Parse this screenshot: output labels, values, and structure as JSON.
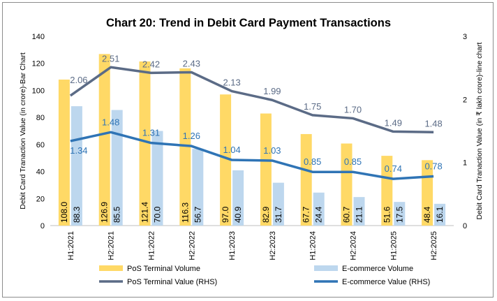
{
  "chart_data": {
    "type": "bar",
    "title": "Chart 20: Trend in Debit Card Payment Transactions",
    "ylabel": "Debit Card Tranaction Value (in crore)-Bar Chart",
    "y2label": "Debit Card Tranaction Value (in ₹ lakh crore)-line chart",
    "ylim": [
      0,
      140
    ],
    "y2lim": [
      0,
      3
    ],
    "yticks": [
      0,
      20,
      40,
      60,
      80,
      100,
      120,
      140
    ],
    "y2ticks": [
      0,
      1,
      2,
      3
    ],
    "categories": [
      "H1:2021",
      "H2:2021",
      "H1:2022",
      "H2:2022",
      "H1:2023",
      "H2:2023",
      "H1:2024",
      "H2:2024",
      "H1:2025",
      "H2:2025"
    ],
    "bar_series": [
      {
        "name": "PoS Terminal Volume",
        "color": "#ffd966",
        "values": [
          108.0,
          126.9,
          121.4,
          116.3,
          97.0,
          82.9,
          67.7,
          60.7,
          51.6,
          48.4
        ],
        "labels": [
          "108.0",
          "126.9",
          "121.4",
          "116.3",
          "97.0",
          "82.9",
          "67.7",
          "60.7",
          "51.6",
          "48.4"
        ]
      },
      {
        "name": "E-commerce Volume",
        "color": "#bdd7ee",
        "values": [
          88.3,
          85.5,
          70.0,
          56.7,
          40.9,
          31.7,
          24.4,
          21.1,
          17.5,
          16.1
        ],
        "labels": [
          "88.3",
          "85.5",
          "70.0",
          "56.7",
          "40.9",
          "31.7",
          "24.4",
          "21.1",
          "17.5",
          "16.1"
        ]
      }
    ],
    "line_series": [
      {
        "name": "PoS Terminal  Value (RHS)",
        "color": "#5b6b86",
        "values": [
          2.06,
          2.51,
          2.42,
          2.43,
          2.13,
          1.99,
          1.75,
          1.7,
          1.49,
          1.48
        ],
        "labels": [
          "2.06",
          "2.51",
          "2.42",
          "2.43",
          "2.13",
          "1.99",
          "1.75",
          "1.70",
          "1.49",
          "1.48"
        ]
      },
      {
        "name": "E-commerce  Value (RHS)",
        "color": "#2f74b5",
        "values": [
          1.34,
          1.48,
          1.31,
          1.26,
          1.04,
          1.03,
          0.85,
          0.85,
          0.74,
          0.78
        ],
        "labels": [
          "1.34",
          "1.48",
          "1.31",
          "1.26",
          "1.04",
          "1.03",
          "0.85",
          "0.85",
          "0.74",
          "0.78"
        ]
      }
    ],
    "grid": false,
    "legend_position": "bottom"
  }
}
